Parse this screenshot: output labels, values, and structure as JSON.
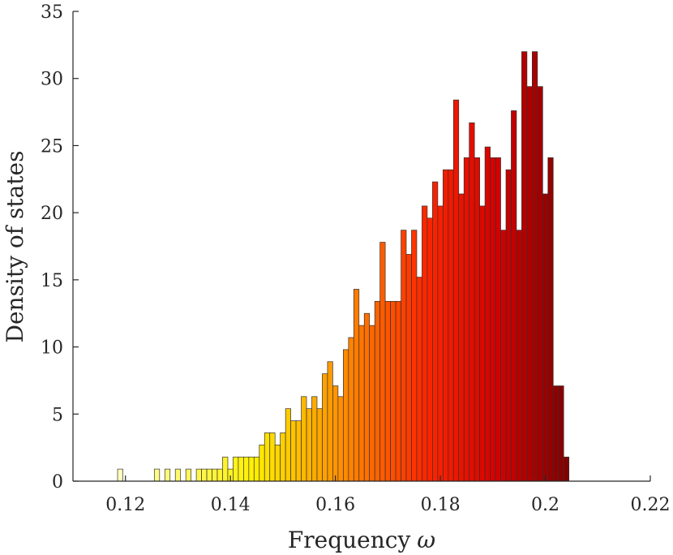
{
  "chart_data": {
    "type": "bar",
    "subtype": "histogram",
    "xlabel": "Frequency",
    "xlabel_symbol": "ω",
    "ylabel": "Density of states",
    "xlim": [
      0.11,
      0.22
    ],
    "ylim": [
      0,
      35
    ],
    "xticks": [
      0.12,
      0.14,
      0.16,
      0.18,
      0.2,
      0.22
    ],
    "xtick_labels": [
      "0.12",
      "0.14",
      "0.16",
      "0.18",
      "0.2",
      "0.22"
    ],
    "yticks": [
      0,
      5,
      10,
      15,
      20,
      25,
      30,
      35
    ],
    "ytick_labels": [
      "0",
      "5",
      "10",
      "15",
      "20",
      "25",
      "30",
      "35"
    ],
    "bin_start": 0.1185,
    "bin_width": 0.001,
    "values": [
      0.9,
      0,
      0,
      0,
      0,
      0,
      0,
      0.9,
      0,
      0.9,
      0,
      0.9,
      0,
      0.9,
      0,
      0.9,
      0.9,
      0.9,
      0.9,
      0.9,
      1.8,
      0.9,
      1.8,
      1.8,
      1.8,
      1.8,
      1.8,
      2.7,
      3.6,
      3.6,
      2.7,
      3.6,
      5.4,
      4.5,
      4.5,
      6.3,
      5.4,
      6.3,
      5.4,
      8.0,
      8.9,
      7.1,
      6.3,
      9.8,
      10.7,
      14.3,
      11.6,
      12.5,
      11.6,
      13.4,
      17.8,
      13.4,
      13.4,
      13.4,
      18.7,
      16.9,
      18.7,
      15.2,
      20.5,
      19.6,
      22.3,
      20.5,
      23.2,
      23.2,
      28.4,
      21.4,
      24.1,
      26.7,
      24.1,
      20.5,
      24.9,
      24.1,
      24.1,
      18.7,
      23.2,
      27.6,
      18.7,
      32.0,
      29.4,
      32.0,
      29.4,
      21.4,
      24.1,
      7.1,
      7.1,
      1.8
    ],
    "colormap": "autumn-hot"
  }
}
